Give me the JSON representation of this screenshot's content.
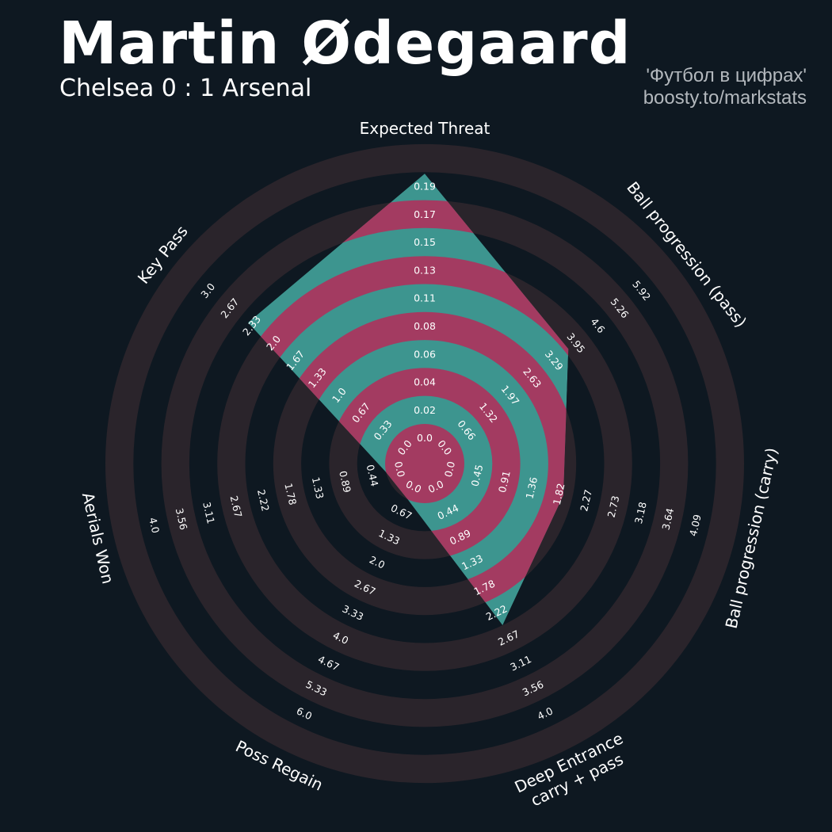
{
  "header": {
    "title": "Martin Ødegaard",
    "subtitle": "Chelsea 0 : 1 Arsenal",
    "credit_line1": "'Футбол в цифрах'",
    "credit_line2": "boosty.to/markstats"
  },
  "colors": {
    "background": "#0e1821",
    "ring_dark": "#2a242b",
    "player_teal": "#3d958f",
    "player_pink": "#a33b61",
    "text": "#ffffff",
    "credit": "#b3b8bd"
  },
  "chart_data": {
    "type": "radar",
    "title": "Martin Ødegaard",
    "subtitle": "Chelsea 0 : 1 Arsenal",
    "params": [
      {
        "label": [
          "Expected Threat"
        ],
        "min": 0.0,
        "max": 0.19,
        "value": 0.17,
        "ticks": [
          "0.0",
          "0.02",
          "0.04",
          "0.06",
          "0.08",
          "0.11",
          "0.13",
          "0.15",
          "0.17",
          "0.19"
        ]
      },
      {
        "label": [
          "Ball progression (pass)"
        ],
        "min": 0.0,
        "max": 5.92,
        "value": 3.05,
        "ticks": [
          "0.0",
          "0.66",
          "1.32",
          "1.97",
          "2.63",
          "3.29",
          "3.95",
          "4.6",
          "5.26",
          "5.92"
        ]
      },
      {
        "label": [
          "Ball progression (carry)"
        ],
        "min": 0.0,
        "max": 4.09,
        "value": 1.5,
        "ticks": [
          "0.0",
          "0.45",
          "0.91",
          "1.36",
          "1.82",
          "2.27",
          "2.73",
          "3.18",
          "3.64",
          "4.09"
        ]
      },
      {
        "label": [
          "Deep Entrance",
          "carry + pass"
        ],
        "min": 0.0,
        "max": 4.0,
        "value": 2.0,
        "ticks": [
          "0.0",
          "0.44",
          "0.89",
          "1.33",
          "1.78",
          "2.22",
          "2.67",
          "3.11",
          "3.56",
          "4.0"
        ]
      },
      {
        "label": [
          "Poss Regain"
        ],
        "min": 0.0,
        "max": 6.0,
        "value": 0.0,
        "ticks": [
          "0.0",
          "0.67",
          "1.33",
          "2.0",
          "2.67",
          "3.33",
          "4.0",
          "4.67",
          "5.33",
          "6.0"
        ]
      },
      {
        "label": [
          "Aerials Won"
        ],
        "min": 0.0,
        "max": 4.0,
        "value": 0.0,
        "ticks": [
          "0.0",
          "0.44",
          "0.89",
          "1.33",
          "1.78",
          "2.22",
          "2.67",
          "3.11",
          "3.56",
          "4.0"
        ]
      },
      {
        "label": [
          "Key Pass"
        ],
        "min": 0.0,
        "max": 3.0,
        "value": 2.0,
        "ticks": [
          "0.0",
          "0.33",
          "0.67",
          "1.0",
          "1.33",
          "1.67",
          "2.0",
          "2.33",
          "2.67",
          "3.0"
        ]
      }
    ],
    "grid": "concentric rings"
  }
}
